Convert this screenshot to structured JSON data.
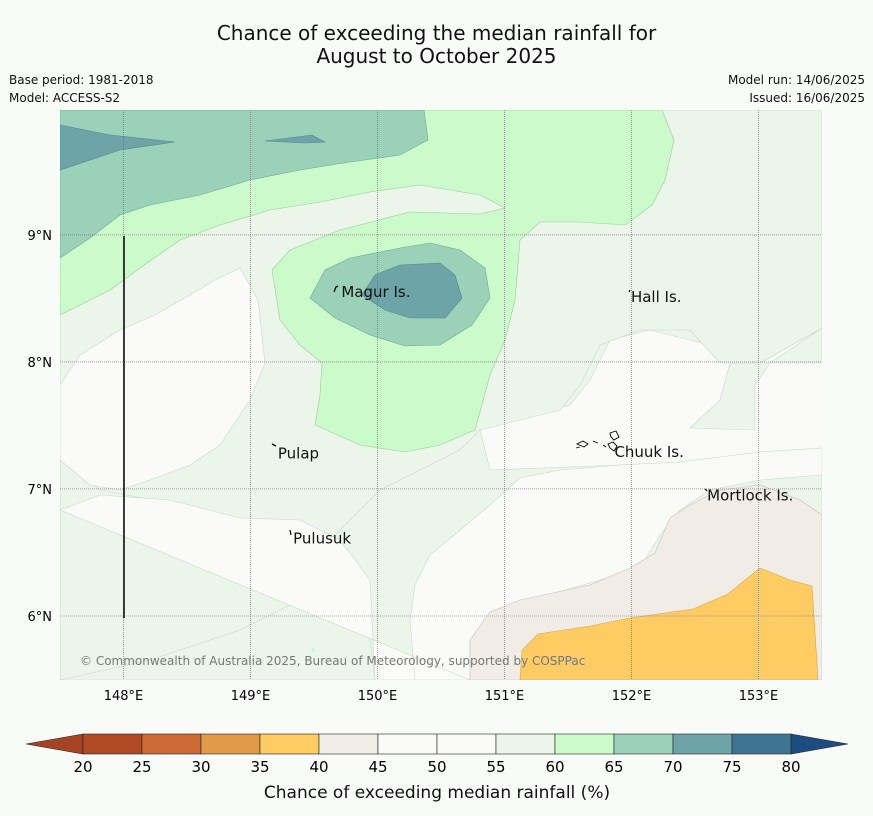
{
  "title_line1": "Chance of exceeding the median rainfall for",
  "title_line2": "August to October 2025",
  "base_period": "Base period: 1981-2018",
  "model": "Model: ACCESS-S2",
  "model_run": "Model run: 14/06/2025",
  "issued": "Issued: 16/06/2025",
  "copyright": "© Commonwealth of Australia 2025, Bureau of Meteorology, supported by COSPPac",
  "lat_labels": [
    "9°N",
    "8°N",
    "7°N",
    "6°N"
  ],
  "lon_labels": [
    "148°E",
    "149°E",
    "150°E",
    "151°E",
    "152°E",
    "153°E"
  ],
  "places": [
    {
      "name": "Magur Is.",
      "lon": 149.7,
      "lat": 8.55
    },
    {
      "name": "Hall Is.",
      "lon": 151.98,
      "lat": 8.51
    },
    {
      "name": "Pulap",
      "lon": 149.2,
      "lat": 7.28
    },
    {
      "name": "Chuuk Is.",
      "lon": 151.85,
      "lat": 7.29
    },
    {
      "name": "Mortlock Is.",
      "lon": 152.58,
      "lat": 6.95
    },
    {
      "name": "Pulusuk",
      "lon": 149.32,
      "lat": 6.61
    }
  ],
  "colorbar": {
    "label": "Chance of exceeding median rainfall (%)",
    "ticks": [
      "20",
      "25",
      "30",
      "35",
      "40",
      "45",
      "50",
      "55",
      "60",
      "65",
      "70",
      "75",
      "80"
    ],
    "colors": [
      "#b04b26",
      "#cd6934",
      "#e19a4a",
      "#ffcb63",
      "#f1ece5",
      "#fafbf9",
      "#fafbf9",
      "#ebf5ea",
      "#cbfbca",
      "#9bd1b9",
      "#6ea4a7",
      "#3f7592"
    ],
    "under_color": "#a54424",
    "over_color": "#1c4c80"
  }
}
